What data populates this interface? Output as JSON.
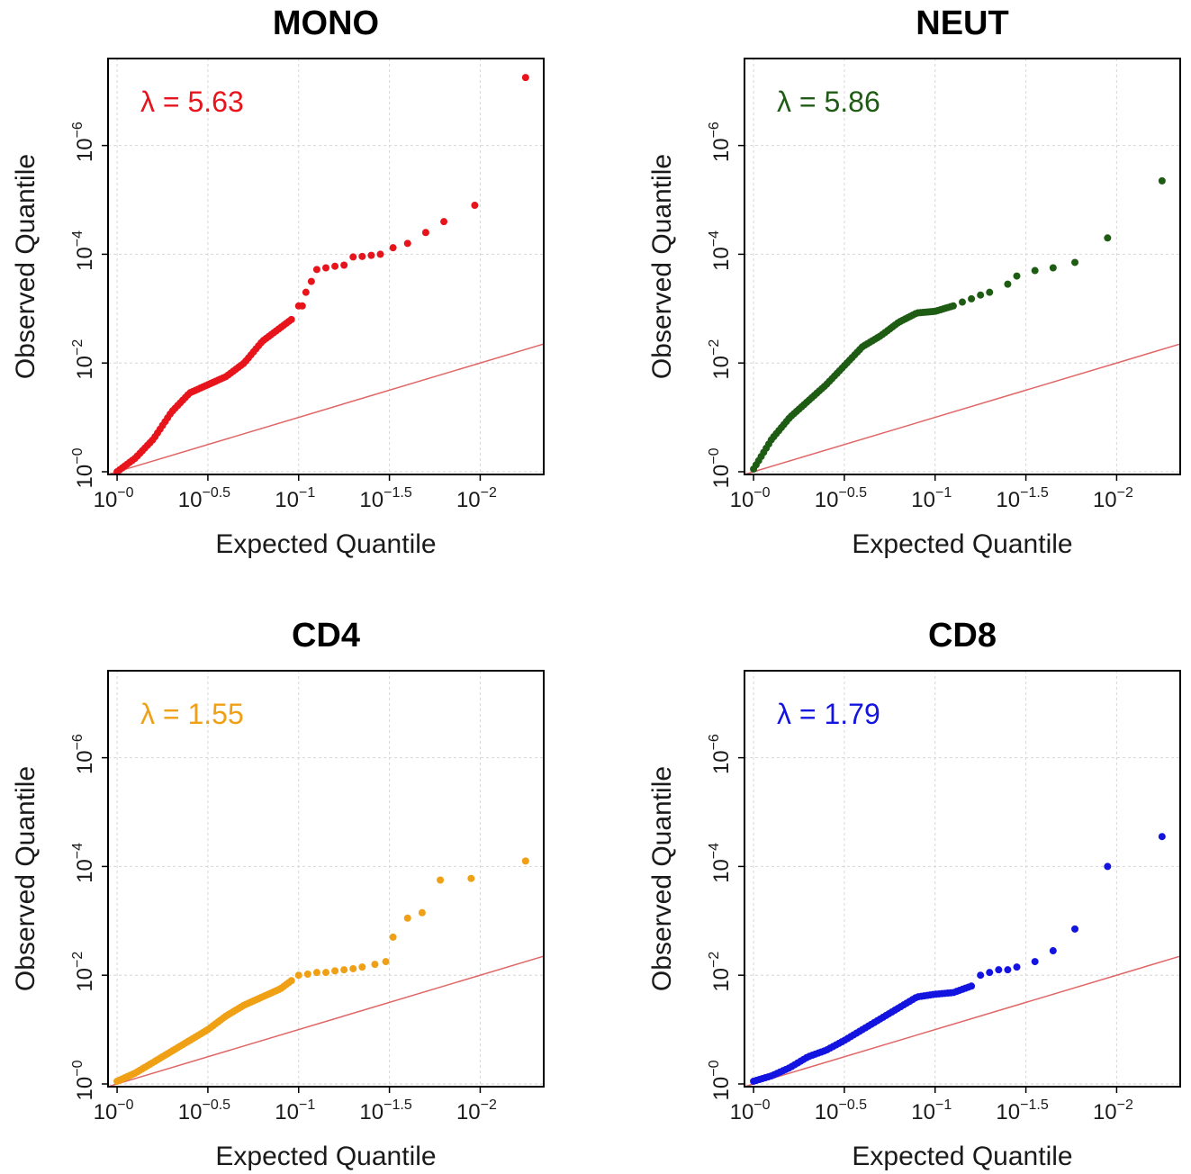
{
  "colors": {
    "reference_line": "#e06666",
    "grid": "#d6d6d6",
    "frame": "#000000"
  },
  "chart_data": [
    {
      "type": "scatter",
      "title": "MONO",
      "xlabel": "Expected Quantile",
      "ylabel": "Observed Quantile",
      "annotation": "λ = 5.63",
      "color": "#e8141c",
      "xscale": "-log10",
      "yscale": "-log10",
      "xlim": [
        -0.05,
        2.35
      ],
      "ylim": [
        -0.05,
        7.6
      ],
      "x_ticks": [
        {
          "base": "10",
          "exp": "−0"
        },
        {
          "base": "10",
          "exp": "−0.5"
        },
        {
          "base": "10",
          "exp": "−1"
        },
        {
          "base": "10",
          "exp": "−1.5"
        },
        {
          "base": "10",
          "exp": "−2"
        }
      ],
      "y_ticks": [
        {
          "base": "10",
          "exp": "−0"
        },
        {
          "base": "10",
          "exp": "−2"
        },
        {
          "base": "10",
          "exp": "−4"
        },
        {
          "base": "10",
          "exp": "−6"
        }
      ],
      "tick_values_x": [
        0,
        0.5,
        1,
        1.5,
        2
      ],
      "tick_values_y": [
        0,
        2,
        4,
        6
      ],
      "reference_line": {
        "x": [
          -0.05,
          2.35
        ],
        "y": [
          -0.05,
          2.35
        ]
      },
      "points": {
        "curve": [
          [
            0.0,
            0.0
          ],
          [
            0.1,
            0.25
          ],
          [
            0.2,
            0.6
          ],
          [
            0.3,
            1.1
          ],
          [
            0.4,
            1.45
          ],
          [
            0.5,
            1.6
          ],
          [
            0.6,
            1.75
          ],
          [
            0.7,
            2.0
          ],
          [
            0.8,
            2.4
          ],
          [
            0.9,
            2.65
          ],
          [
            0.96,
            2.8
          ]
        ],
        "curve_n": 70,
        "extra": [
          [
            1.0,
            3.05
          ],
          [
            1.02,
            3.05
          ],
          [
            1.04,
            3.3
          ],
          [
            1.07,
            3.5
          ],
          [
            1.1,
            3.72
          ],
          [
            1.15,
            3.75
          ],
          [
            1.2,
            3.78
          ],
          [
            1.25,
            3.8
          ],
          [
            1.3,
            3.95
          ],
          [
            1.35,
            3.96
          ],
          [
            1.4,
            3.98
          ],
          [
            1.45,
            4.0
          ],
          [
            1.52,
            4.12
          ],
          [
            1.6,
            4.2
          ],
          [
            1.7,
            4.4
          ],
          [
            1.8,
            4.6
          ],
          [
            1.97,
            4.9
          ],
          [
            2.25,
            7.25
          ]
        ]
      }
    },
    {
      "type": "scatter",
      "title": "NEUT",
      "xlabel": "Expected Quantile",
      "ylabel": "Observed Quantile",
      "annotation": "λ = 5.86",
      "color": "#1e5c14",
      "xscale": "-log10",
      "yscale": "-log10",
      "xlim": [
        -0.05,
        2.35
      ],
      "ylim": [
        -0.05,
        7.6
      ],
      "x_ticks": [
        {
          "base": "10",
          "exp": "−0"
        },
        {
          "base": "10",
          "exp": "−0.5"
        },
        {
          "base": "10",
          "exp": "−1"
        },
        {
          "base": "10",
          "exp": "−1.5"
        },
        {
          "base": "10",
          "exp": "−2"
        }
      ],
      "y_ticks": [
        {
          "base": "10",
          "exp": "−0"
        },
        {
          "base": "10",
          "exp": "−2"
        },
        {
          "base": "10",
          "exp": "−4"
        },
        {
          "base": "10",
          "exp": "−6"
        }
      ],
      "tick_values_x": [
        0,
        0.5,
        1,
        1.5,
        2
      ],
      "tick_values_y": [
        0,
        2,
        4,
        6
      ],
      "reference_line": {
        "x": [
          -0.05,
          2.35
        ],
        "y": [
          -0.05,
          2.35
        ]
      },
      "points": {
        "curve": [
          [
            0.0,
            0.05
          ],
          [
            0.1,
            0.6
          ],
          [
            0.2,
            1.0
          ],
          [
            0.3,
            1.3
          ],
          [
            0.4,
            1.6
          ],
          [
            0.5,
            1.95
          ],
          [
            0.6,
            2.3
          ],
          [
            0.7,
            2.5
          ],
          [
            0.8,
            2.75
          ],
          [
            0.9,
            2.92
          ],
          [
            1.0,
            2.95
          ],
          [
            1.1,
            3.05
          ]
        ],
        "curve_n": 80,
        "extra": [
          [
            1.15,
            3.12
          ],
          [
            1.2,
            3.18
          ],
          [
            1.25,
            3.25
          ],
          [
            1.3,
            3.3
          ],
          [
            1.4,
            3.45
          ],
          [
            1.45,
            3.6
          ],
          [
            1.55,
            3.7
          ],
          [
            1.65,
            3.75
          ],
          [
            1.77,
            3.85
          ],
          [
            1.95,
            4.3
          ],
          [
            2.25,
            5.35
          ]
        ]
      }
    },
    {
      "type": "scatter",
      "title": "CD4",
      "xlabel": "Expected Quantile",
      "ylabel": "Observed Quantile",
      "annotation": "λ = 1.55",
      "color": "#f0a014",
      "xscale": "-log10",
      "yscale": "-log10",
      "xlim": [
        -0.05,
        2.35
      ],
      "ylim": [
        -0.05,
        7.6
      ],
      "x_ticks": [
        {
          "base": "10",
          "exp": "−0"
        },
        {
          "base": "10",
          "exp": "−0.5"
        },
        {
          "base": "10",
          "exp": "−1"
        },
        {
          "base": "10",
          "exp": "−1.5"
        },
        {
          "base": "10",
          "exp": "−2"
        }
      ],
      "y_ticks": [
        {
          "base": "10",
          "exp": "−0"
        },
        {
          "base": "10",
          "exp": "−2"
        },
        {
          "base": "10",
          "exp": "−4"
        },
        {
          "base": "10",
          "exp": "−6"
        }
      ],
      "tick_values_x": [
        0,
        0.5,
        1,
        1.5,
        2
      ],
      "tick_values_y": [
        0,
        2,
        4,
        6
      ],
      "reference_line": {
        "x": [
          -0.05,
          2.35
        ],
        "y": [
          -0.05,
          2.35
        ]
      },
      "points": {
        "curve": [
          [
            0.0,
            0.05
          ],
          [
            0.1,
            0.2
          ],
          [
            0.2,
            0.4
          ],
          [
            0.3,
            0.6
          ],
          [
            0.4,
            0.8
          ],
          [
            0.5,
            1.0
          ],
          [
            0.6,
            1.25
          ],
          [
            0.7,
            1.45
          ],
          [
            0.8,
            1.6
          ],
          [
            0.9,
            1.75
          ],
          [
            0.96,
            1.9
          ]
        ],
        "curve_n": 70,
        "extra": [
          [
            1.0,
            2.0
          ],
          [
            1.05,
            2.02
          ],
          [
            1.1,
            2.05
          ],
          [
            1.15,
            2.05
          ],
          [
            1.2,
            2.08
          ],
          [
            1.25,
            2.1
          ],
          [
            1.3,
            2.12
          ],
          [
            1.35,
            2.15
          ],
          [
            1.42,
            2.2
          ],
          [
            1.48,
            2.25
          ],
          [
            1.52,
            2.7
          ],
          [
            1.6,
            3.05
          ],
          [
            1.68,
            3.15
          ],
          [
            1.78,
            3.75
          ],
          [
            1.95,
            3.78
          ],
          [
            2.25,
            4.1
          ]
        ]
      }
    },
    {
      "type": "scatter",
      "title": "CD8",
      "xlabel": "Expected Quantile",
      "ylabel": "Observed Quantile",
      "annotation": "λ = 1.79",
      "color": "#1414e0",
      "xscale": "-log10",
      "yscale": "-log10",
      "xlim": [
        -0.05,
        2.35
      ],
      "ylim": [
        -0.05,
        7.6
      ],
      "x_ticks": [
        {
          "base": "10",
          "exp": "−0"
        },
        {
          "base": "10",
          "exp": "−0.5"
        },
        {
          "base": "10",
          "exp": "−1"
        },
        {
          "base": "10",
          "exp": "−1.5"
        },
        {
          "base": "10",
          "exp": "−2"
        }
      ],
      "y_ticks": [
        {
          "base": "10",
          "exp": "−0"
        },
        {
          "base": "10",
          "exp": "−2"
        },
        {
          "base": "10",
          "exp": "−4"
        },
        {
          "base": "10",
          "exp": "−6"
        }
      ],
      "tick_values_x": [
        0,
        0.5,
        1,
        1.5,
        2
      ],
      "tick_values_y": [
        0,
        2,
        4,
        6
      ],
      "reference_line": {
        "x": [
          -0.05,
          2.35
        ],
        "y": [
          -0.05,
          2.35
        ]
      },
      "points": {
        "curve": [
          [
            0.0,
            0.05
          ],
          [
            0.1,
            0.15
          ],
          [
            0.2,
            0.3
          ],
          [
            0.3,
            0.5
          ],
          [
            0.4,
            0.62
          ],
          [
            0.5,
            0.8
          ],
          [
            0.6,
            1.0
          ],
          [
            0.7,
            1.2
          ],
          [
            0.8,
            1.4
          ],
          [
            0.9,
            1.6
          ],
          [
            1.0,
            1.65
          ],
          [
            1.1,
            1.68
          ],
          [
            1.2,
            1.8
          ]
        ],
        "curve_n": 75,
        "extra": [
          [
            1.25,
            2.0
          ],
          [
            1.3,
            2.05
          ],
          [
            1.35,
            2.1
          ],
          [
            1.4,
            2.1
          ],
          [
            1.45,
            2.15
          ],
          [
            1.55,
            2.25
          ],
          [
            1.65,
            2.45
          ],
          [
            1.77,
            2.85
          ],
          [
            1.95,
            4.0
          ],
          [
            2.25,
            4.55
          ]
        ]
      }
    }
  ]
}
